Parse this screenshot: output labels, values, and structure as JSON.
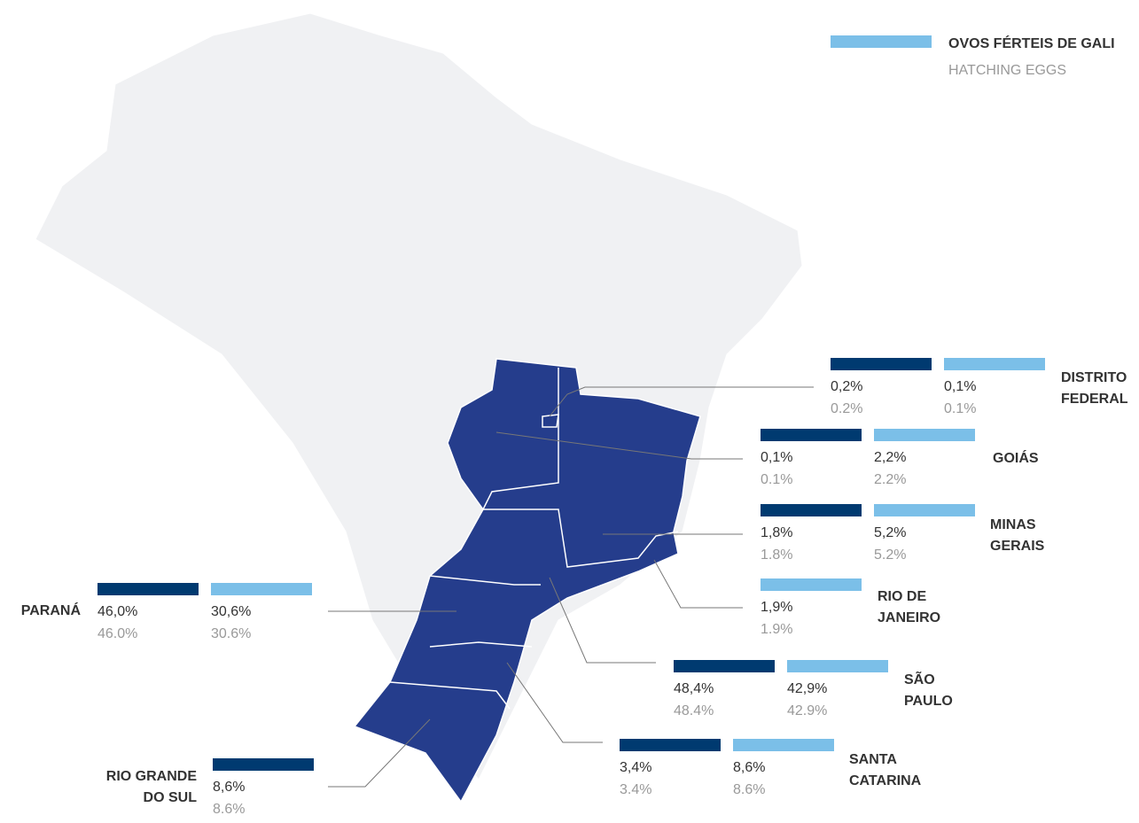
{
  "legend": {
    "title": "OVOS FÉRTEIS DE GALI",
    "subtitle": "HATCHING EGGS"
  },
  "regions": [
    {
      "name_lines": [
        "DISTRITO",
        "FEDERAL"
      ],
      "dark": {
        "pt": "0,2%",
        "en": "0.2%"
      },
      "light": {
        "pt": "0,1%",
        "en": "0.1%"
      }
    },
    {
      "name_lines": [
        "GOIÁS"
      ],
      "dark": {
        "pt": "0,1%",
        "en": "0.1%"
      },
      "light": {
        "pt": "2,2%",
        "en": "2.2%"
      }
    },
    {
      "name_lines": [
        "MINAS",
        "GERAIS"
      ],
      "dark": {
        "pt": "1,8%",
        "en": "1.8%"
      },
      "light": {
        "pt": "5,2%",
        "en": "5.2%"
      }
    },
    {
      "name_lines": [
        "RIO DE",
        "JANEIRO"
      ],
      "dark": null,
      "light": {
        "pt": "1,9%",
        "en": "1.9%"
      }
    },
    {
      "name_lines": [
        "SÃO",
        "PAULO"
      ],
      "dark": {
        "pt": "48,4%",
        "en": "48.4%"
      },
      "light": {
        "pt": "42,9%",
        "en": "42.9%"
      }
    },
    {
      "name_lines": [
        "SANTA",
        "CATARINA"
      ],
      "dark": {
        "pt": "3,4%",
        "en": "3.4%"
      },
      "light": {
        "pt": "8,6%",
        "en": "8.6%"
      }
    },
    {
      "name_lines": [
        "PARANÁ"
      ],
      "dark": {
        "pt": "46,0%",
        "en": "46.0%"
      },
      "light": {
        "pt": "30,6%",
        "en": "30.6%"
      }
    },
    {
      "name_lines": [
        "RIO GRANDE",
        "DO SUL"
      ],
      "dark": {
        "pt": "8,6%",
        "en": "8.6%"
      },
      "light": null
    }
  ]
}
